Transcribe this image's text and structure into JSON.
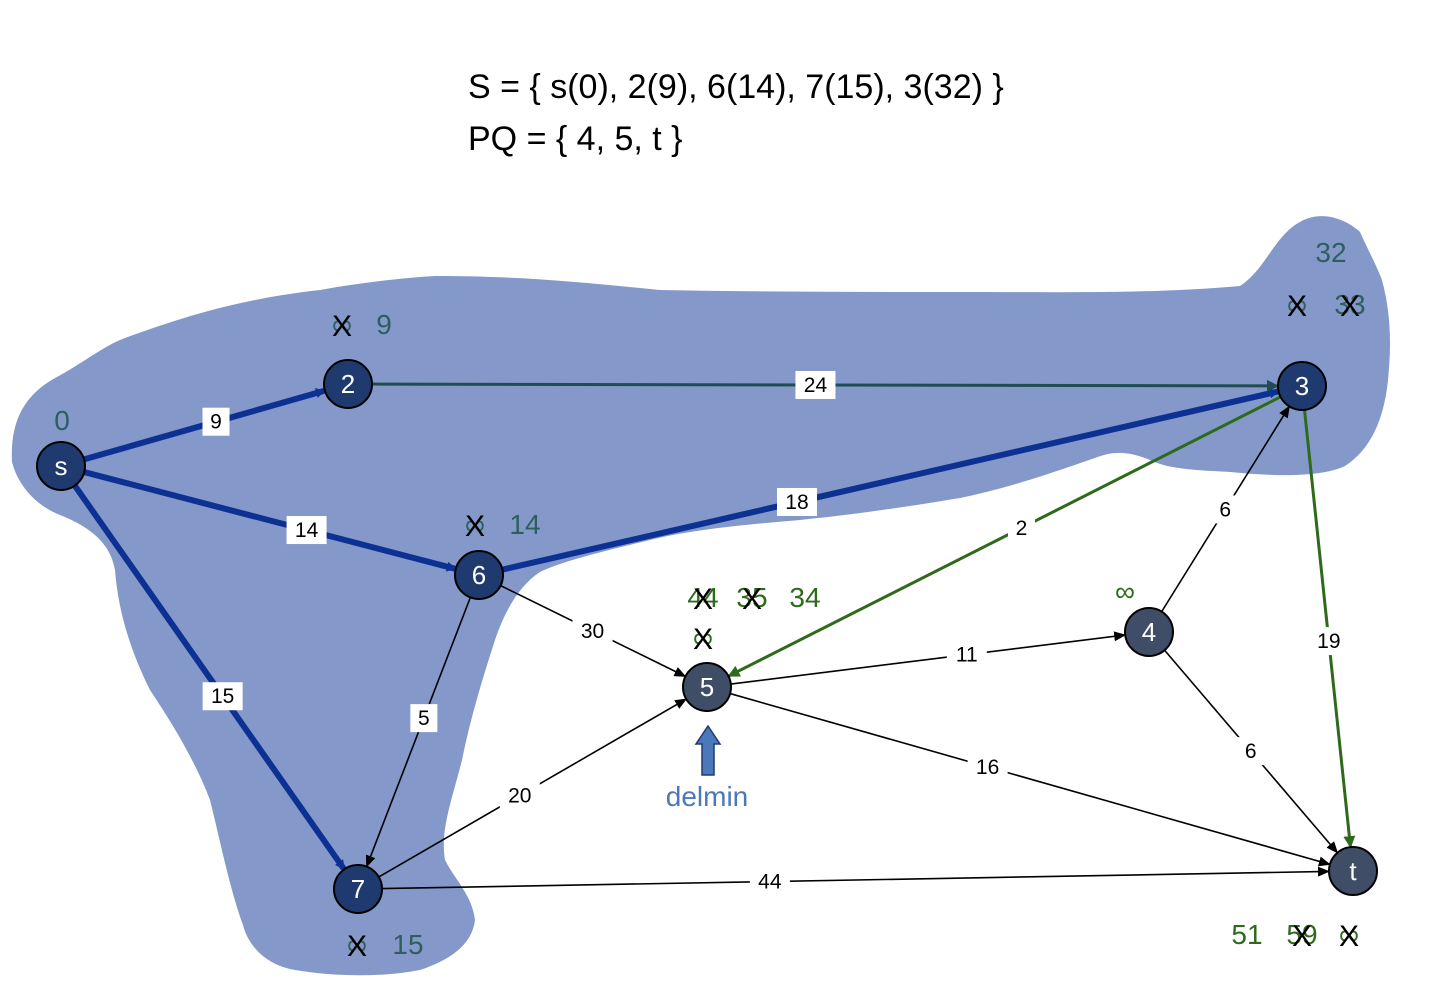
{
  "header": {
    "set_line": "S = { s(0), 2(9), 6(14), 7(15), 3(32) }",
    "pq_line": "PQ = { 4, 5, t }"
  },
  "colors": {
    "region": "#8499c9",
    "node_dark": "#1f3a6e",
    "node_grey": "#3f4e66",
    "tree_edge": "#0c3193",
    "teal_edge": "#1f4d52",
    "green_edge": "#2f6a1c",
    "black_edge": "#000000",
    "dist_teal": "#2e5e5e",
    "dist_green": "#2f6a1c"
  },
  "nodes": [
    {
      "id": "s",
      "label": "s",
      "style": "dark"
    },
    {
      "id": "2",
      "label": "2",
      "style": "dark"
    },
    {
      "id": "3",
      "label": "3",
      "style": "dark"
    },
    {
      "id": "6",
      "label": "6",
      "style": "dark"
    },
    {
      "id": "7",
      "label": "7",
      "style": "dark"
    },
    {
      "id": "5",
      "label": "5",
      "style": "grey"
    },
    {
      "id": "4",
      "label": "4",
      "style": "grey"
    },
    {
      "id": "t",
      "label": "t",
      "style": "grey"
    }
  ],
  "edges": [
    {
      "from": "s",
      "to": "2",
      "weight": "9",
      "style": "tree"
    },
    {
      "from": "s",
      "to": "6",
      "weight": "14",
      "style": "tree"
    },
    {
      "from": "s",
      "to": "7",
      "weight": "15",
      "style": "tree"
    },
    {
      "from": "6",
      "to": "3",
      "weight": "18",
      "style": "tree"
    },
    {
      "from": "2",
      "to": "3",
      "weight": "24",
      "style": "teal"
    },
    {
      "from": "3",
      "to": "5",
      "weight": "2",
      "style": "green"
    },
    {
      "from": "3",
      "to": "t",
      "weight": "19",
      "style": "green"
    },
    {
      "from": "6",
      "to": "5",
      "weight": "30",
      "style": "black"
    },
    {
      "from": "6",
      "to": "7",
      "weight": "5",
      "style": "black"
    },
    {
      "from": "7",
      "to": "5",
      "weight": "20",
      "style": "black"
    },
    {
      "from": "7",
      "to": "t",
      "weight": "44",
      "style": "black"
    },
    {
      "from": "5",
      "to": "4",
      "weight": "11",
      "style": "black"
    },
    {
      "from": "5",
      "to": "t",
      "weight": "16",
      "style": "black"
    },
    {
      "from": "4",
      "to": "3",
      "weight": "6",
      "style": "black"
    },
    {
      "from": "4",
      "to": "t",
      "weight": "6",
      "style": "black"
    }
  ],
  "distances": [
    {
      "node": "s",
      "items": [
        {
          "text": "0",
          "crossed": false,
          "color": "teal"
        }
      ]
    },
    {
      "node": "2",
      "items": [
        {
          "text": "∞",
          "crossed": true,
          "color": "teal"
        },
        {
          "text": "9",
          "crossed": false,
          "color": "teal"
        }
      ]
    },
    {
      "node": "6",
      "items": [
        {
          "text": "∞",
          "crossed": true,
          "color": "teal"
        },
        {
          "text": "14",
          "crossed": false,
          "color": "teal"
        }
      ]
    },
    {
      "node": "7",
      "items": [
        {
          "text": "∞",
          "crossed": true,
          "color": "teal"
        },
        {
          "text": "15",
          "crossed": false,
          "color": "teal"
        }
      ]
    },
    {
      "node": "3",
      "items": [
        {
          "text": "∞",
          "crossed": true,
          "color": "teal"
        },
        {
          "text": "33",
          "crossed": true,
          "color": "teal"
        },
        {
          "text": "32",
          "crossed": false,
          "color": "teal"
        }
      ]
    },
    {
      "node": "5",
      "items": [
        {
          "text": "∞",
          "crossed": true,
          "color": "green"
        },
        {
          "text": "44",
          "crossed": true,
          "color": "green"
        },
        {
          "text": "35",
          "crossed": true,
          "color": "green"
        },
        {
          "text": "34",
          "crossed": false,
          "color": "green"
        }
      ]
    },
    {
      "node": "4",
      "items": [
        {
          "text": "∞",
          "crossed": false,
          "color": "green"
        }
      ]
    },
    {
      "node": "t",
      "items": [
        {
          "text": "51",
          "crossed": false,
          "color": "green"
        },
        {
          "text": "59",
          "crossed": true,
          "color": "green"
        },
        {
          "text": "∞",
          "crossed": true,
          "color": "green"
        }
      ]
    }
  ],
  "pointer": {
    "label": "delmin",
    "node": "5"
  },
  "cross_symbol": "X"
}
